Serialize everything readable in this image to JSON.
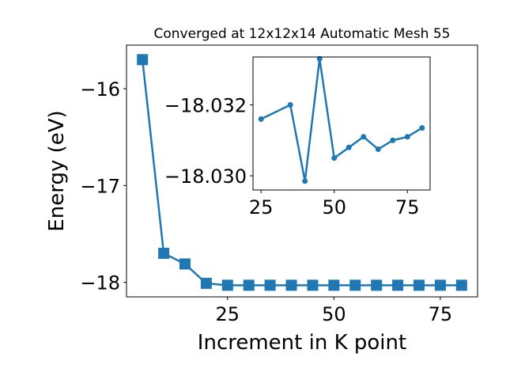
{
  "chart_data": [
    {
      "type": "line",
      "title": "Converged at 12x12x14 Automatic Mesh 55",
      "xlabel": "Increment in K point",
      "ylabel": "Energy (eV)",
      "xlim": [
        1.25,
        83.75
      ],
      "ylim": [
        -18.15,
        -15.55
      ],
      "xticks": [
        25,
        50,
        75
      ],
      "xtick_labels": [
        "25",
        "50",
        "75"
      ],
      "yticks": [
        -16,
        -17,
        -18
      ],
      "ytick_labels": [
        "−16",
        "−17",
        "−18"
      ],
      "grid": false,
      "series": [
        {
          "marker": "square",
          "color": "#1f77b4",
          "x": [
            5,
            10,
            15,
            20,
            25,
            30,
            35,
            40,
            45,
            50,
            55,
            60,
            65,
            70,
            75,
            80
          ],
          "y": [
            -15.7,
            -17.7,
            -17.81,
            -18.01,
            -18.03,
            -18.03,
            -18.03,
            -18.03,
            -18.03,
            -18.03,
            -18.03,
            -18.03,
            -18.03,
            -18.03,
            -18.03,
            -18.03
          ]
        }
      ]
    },
    {
      "type": "line",
      "inset": true,
      "xlim": [
        22.25,
        82.75
      ],
      "ylim": [
        -18.0296,
        -18.03335
      ],
      "xticks": [
        25,
        50,
        75
      ],
      "xtick_labels": [
        "25",
        "50",
        "75"
      ],
      "yticks": [
        -18.032,
        -18.03
      ],
      "ytick_labels": [
        "−18.032",
        "−18.030"
      ],
      "grid": false,
      "series": [
        {
          "marker": "circle",
          "color": "#1f77b4",
          "x": [
            25,
            35,
            40,
            45,
            50,
            55,
            60,
            65,
            70,
            75,
            80
          ],
          "y": [
            -18.0316,
            -18.032,
            -18.02985,
            -18.0333,
            -18.0305,
            -18.0308,
            -18.0311,
            -18.03075,
            -18.031,
            -18.0311,
            -18.03135
          ]
        }
      ]
    }
  ]
}
